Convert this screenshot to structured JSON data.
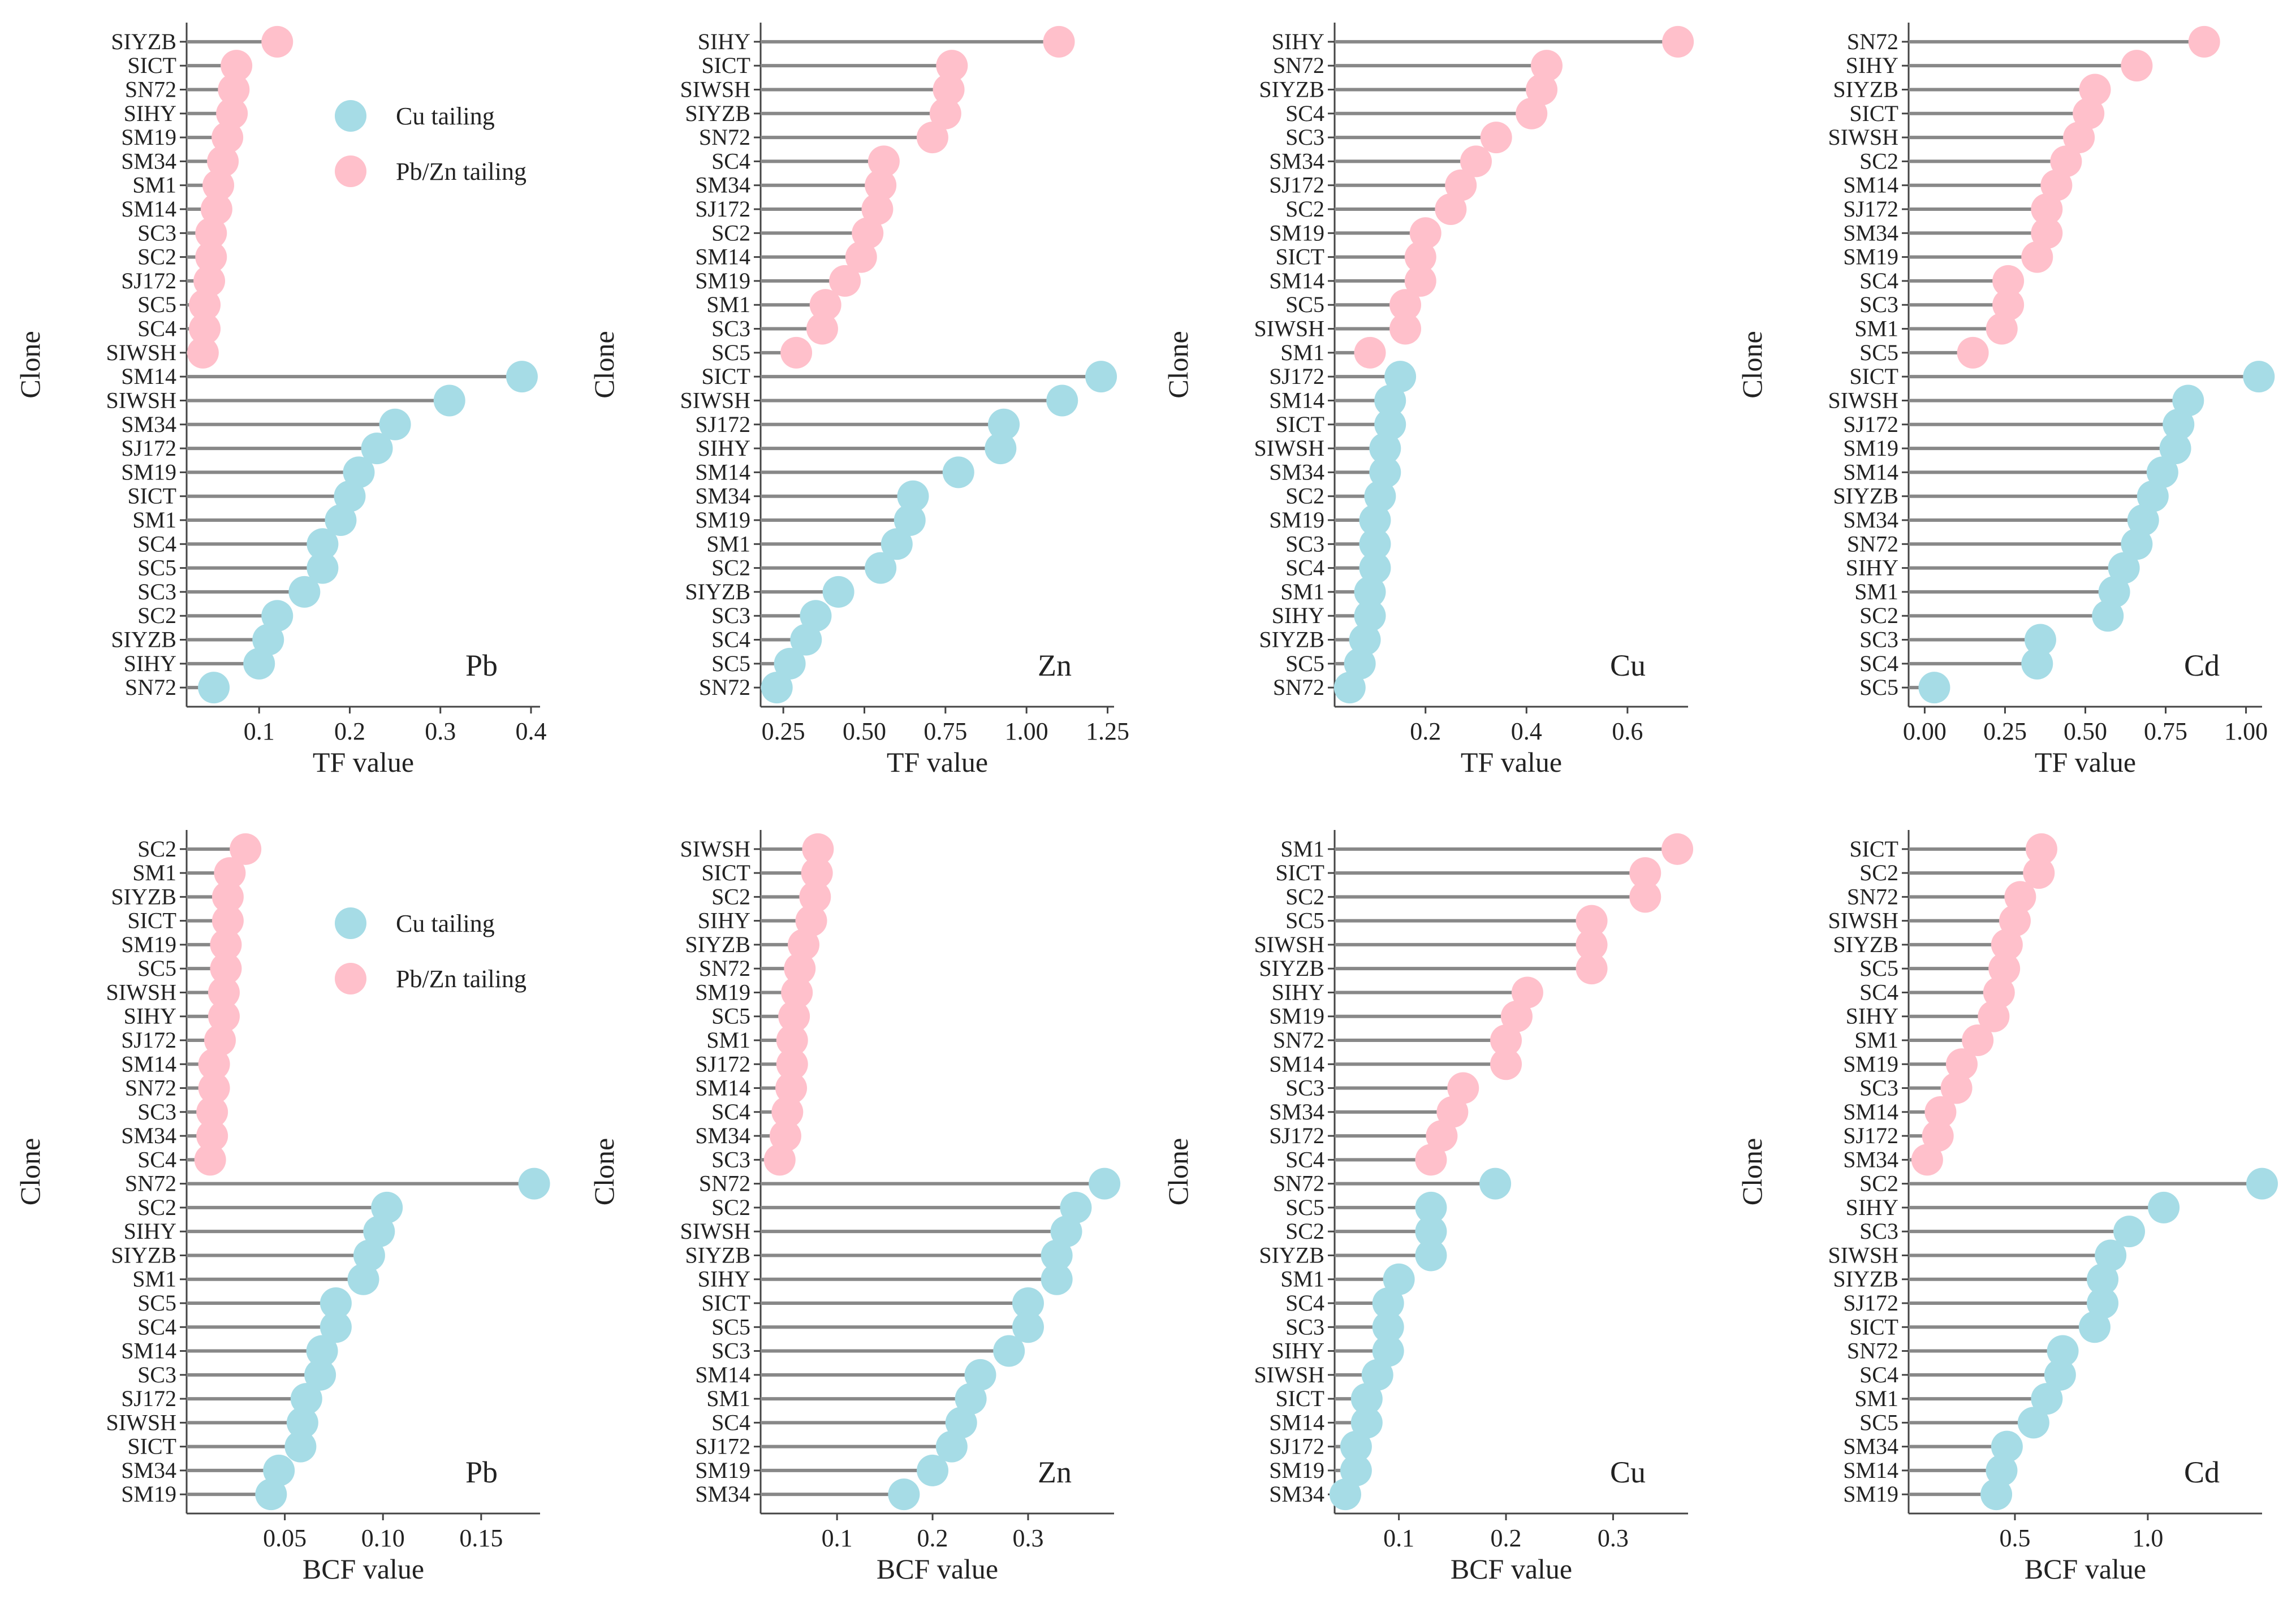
{
  "legend": [
    {
      "name": "Cu tailing",
      "color": "#a6dce6"
    },
    {
      "name": "Pb/Zn tailing",
      "color": "#ffc0cb"
    }
  ],
  "colors": {
    "stem": "#888888",
    "axis": "#444444"
  },
  "chart_data": [
    {
      "type": "lollipop",
      "metal": "Pb",
      "xlabel": "TF value",
      "ylabel": "Clone",
      "xlim": [
        0.02,
        0.41
      ],
      "xticks": [
        0.1,
        0.2,
        0.3,
        0.4
      ],
      "xtick_labels": [
        "0.1",
        "0.2",
        "0.3",
        "0.4"
      ],
      "show_legend": true,
      "series": [
        {
          "name": "Pb/Zn tailing",
          "clones": [
            "SIYZB",
            "SICT",
            "SN72",
            "SIHY",
            "SM19",
            "SM34",
            "SM1",
            "SM14",
            "SC3",
            "SC2",
            "SJ172",
            "SC5",
            "SC4",
            "SIWSH"
          ],
          "values": [
            0.12,
            0.075,
            0.072,
            0.07,
            0.065,
            0.06,
            0.055,
            0.053,
            0.047,
            0.047,
            0.045,
            0.04,
            0.04,
            0.038
          ]
        },
        {
          "name": "Cu tailing",
          "clones": [
            "SM14",
            "SIWSH",
            "SM34",
            "SJ172",
            "SM19",
            "SICT",
            "SM1",
            "SC4",
            "SC5",
            "SC3",
            "SC2",
            "SIYZB",
            "SIHY",
            "SN72"
          ],
          "values": [
            0.39,
            0.31,
            0.25,
            0.23,
            0.21,
            0.2,
            0.19,
            0.17,
            0.17,
            0.15,
            0.12,
            0.11,
            0.1,
            0.05
          ]
        }
      ]
    },
    {
      "type": "lollipop",
      "metal": "Zn",
      "xlabel": "TF value",
      "ylabel": "Clone",
      "xlim": [
        0.18,
        1.27
      ],
      "xticks": [
        0.25,
        0.5,
        0.75,
        1.0,
        1.25
      ],
      "xtick_labels": [
        "0.25",
        "0.50",
        "0.75",
        "1.00",
        "1.25"
      ],
      "show_legend": false,
      "series": [
        {
          "name": "Pb/Zn tailing",
          "clones": [
            "SIHY",
            "SICT",
            "SIWSH",
            "SIYZB",
            "SN72",
            "SC4",
            "SM34",
            "SJ172",
            "SC2",
            "SM14",
            "SM19",
            "SM1",
            "SC3",
            "SC5"
          ],
          "values": [
            1.1,
            0.77,
            0.76,
            0.75,
            0.71,
            0.56,
            0.55,
            0.54,
            0.51,
            0.49,
            0.44,
            0.38,
            0.37,
            0.29
          ]
        },
        {
          "name": "Cu tailing",
          "clones": [
            "SICT",
            "SIWSH",
            "SJ172",
            "SIHY",
            "SM14",
            "SM34",
            "SM19",
            "SM1",
            "SC2",
            "SIYZB",
            "SC3",
            "SC4",
            "SC5",
            "SN72"
          ],
          "values": [
            1.23,
            1.11,
            0.93,
            0.92,
            0.79,
            0.65,
            0.64,
            0.6,
            0.55,
            0.42,
            0.35,
            0.32,
            0.27,
            0.23
          ]
        }
      ]
    },
    {
      "type": "lollipop",
      "metal": "Cu",
      "xlabel": "TF value",
      "ylabel": "Clone",
      "xlim": [
        0.02,
        0.72
      ],
      "xticks": [
        0.2,
        0.4,
        0.6
      ],
      "xtick_labels": [
        "0.2",
        "0.4",
        "0.6"
      ],
      "show_legend": false,
      "series": [
        {
          "name": "Pb/Zn tailing",
          "clones": [
            "SIHY",
            "SN72",
            "SIYZB",
            "SC4",
            "SC3",
            "SM34",
            "SJ172",
            "SC2",
            "SM19",
            "SICT",
            "SM14",
            "SC5",
            "SIWSH",
            "SM1"
          ],
          "values": [
            0.7,
            0.44,
            0.43,
            0.41,
            0.34,
            0.3,
            0.27,
            0.25,
            0.2,
            0.19,
            0.19,
            0.16,
            0.16,
            0.09
          ]
        },
        {
          "name": "Cu tailing",
          "clones": [
            "SJ172",
            "SM14",
            "SICT",
            "SIWSH",
            "SM34",
            "SC2",
            "SM19",
            "SC3",
            "SC4",
            "SM1",
            "SIHY",
            "SIYZB",
            "SC5",
            "SN72"
          ],
          "values": [
            0.15,
            0.13,
            0.13,
            0.12,
            0.12,
            0.11,
            0.1,
            0.1,
            0.1,
            0.09,
            0.09,
            0.08,
            0.07,
            0.05
          ]
        }
      ]
    },
    {
      "type": "lollipop",
      "metal": "Cd",
      "xlabel": "TF value",
      "ylabel": "Clone",
      "xlim": [
        -0.05,
        1.05
      ],
      "xticks": [
        0.0,
        0.25,
        0.5,
        0.75,
        1.0
      ],
      "xtick_labels": [
        "0.00",
        "0.25",
        "0.50",
        "0.75",
        "1.00"
      ],
      "show_legend": false,
      "series": [
        {
          "name": "Pb/Zn tailing",
          "clones": [
            "SN72",
            "SIHY",
            "SIYZB",
            "SICT",
            "SIWSH",
            "SC2",
            "SM14",
            "SJ172",
            "SM34",
            "SM19",
            "SC4",
            "SC3",
            "SM1",
            "SC5"
          ],
          "values": [
            0.87,
            0.66,
            0.53,
            0.51,
            0.48,
            0.44,
            0.41,
            0.38,
            0.38,
            0.35,
            0.26,
            0.26,
            0.24,
            0.15
          ]
        },
        {
          "name": "Cu tailing",
          "clones": [
            "SICT",
            "SIWSH",
            "SJ172",
            "SM19",
            "SM14",
            "SIYZB",
            "SM34",
            "SN72",
            "SIHY",
            "SM1",
            "SC2",
            "SC3",
            "SC4",
            "SC5"
          ],
          "values": [
            1.04,
            0.82,
            0.79,
            0.78,
            0.74,
            0.71,
            0.68,
            0.66,
            0.62,
            0.59,
            0.57,
            0.36,
            0.35,
            0.03
          ]
        }
      ]
    },
    {
      "type": "lollipop",
      "metal": "Pb",
      "xlabel": "BCF value",
      "ylabel": "Clone",
      "xlim": [
        0.0,
        0.18
      ],
      "xticks": [
        0.05,
        0.1,
        0.15
      ],
      "xtick_labels": [
        "0.05",
        "0.10",
        "0.15"
      ],
      "show_legend": true,
      "series": [
        {
          "name": "Pb/Zn tailing",
          "clones": [
            "SC2",
            "SM1",
            "SIYZB",
            "SICT",
            "SM19",
            "SC5",
            "SIWSH",
            "SIHY",
            "SJ172",
            "SM14",
            "SN72",
            "SC3",
            "SM34",
            "SC4"
          ],
          "values": [
            0.03,
            0.022,
            0.021,
            0.021,
            0.02,
            0.02,
            0.019,
            0.019,
            0.017,
            0.014,
            0.014,
            0.013,
            0.013,
            0.012
          ]
        },
        {
          "name": "Cu tailing",
          "clones": [
            "SN72",
            "SC2",
            "SIHY",
            "SIYZB",
            "SM1",
            "SC5",
            "SC4",
            "SM14",
            "SC3",
            "SJ172",
            "SIWSH",
            "SICT",
            "SM34",
            "SM19"
          ],
          "values": [
            0.177,
            0.102,
            0.098,
            0.093,
            0.09,
            0.076,
            0.076,
            0.069,
            0.068,
            0.061,
            0.059,
            0.058,
            0.047,
            0.043
          ]
        }
      ]
    },
    {
      "type": "lollipop",
      "metal": "Zn",
      "xlabel": "BCF value",
      "ylabel": "Clone",
      "xlim": [
        0.02,
        0.39
      ],
      "xticks": [
        0.1,
        0.2,
        0.3
      ],
      "xtick_labels": [
        "0.1",
        "0.2",
        "0.3"
      ],
      "show_legend": false,
      "series": [
        {
          "name": "Pb/Zn tailing",
          "clones": [
            "SIWSH",
            "SICT",
            "SC2",
            "SIHY",
            "SIYZB",
            "SN72",
            "SM19",
            "SC5",
            "SM1",
            "SJ172",
            "SM14",
            "SC4",
            "SM34",
            "SC3"
          ],
          "values": [
            0.08,
            0.079,
            0.077,
            0.073,
            0.065,
            0.061,
            0.058,
            0.055,
            0.053,
            0.053,
            0.052,
            0.048,
            0.046,
            0.04
          ]
        },
        {
          "name": "Cu tailing",
          "clones": [
            "SN72",
            "SC2",
            "SIWSH",
            "SIYZB",
            "SIHY",
            "SICT",
            "SC5",
            "SC3",
            "SM14",
            "SM1",
            "SC4",
            "SJ172",
            "SM19",
            "SM34"
          ],
          "values": [
            0.38,
            0.35,
            0.34,
            0.33,
            0.33,
            0.3,
            0.3,
            0.28,
            0.25,
            0.24,
            0.23,
            0.22,
            0.2,
            0.17
          ]
        }
      ]
    },
    {
      "type": "lollipop",
      "metal": "Cu",
      "xlabel": "BCF value",
      "ylabel": "Clone",
      "xlim": [
        0.04,
        0.37
      ],
      "xticks": [
        0.1,
        0.2,
        0.3
      ],
      "xtick_labels": [
        "0.1",
        "0.2",
        "0.3"
      ],
      "show_legend": false,
      "series": [
        {
          "name": "Pb/Zn tailing",
          "clones": [
            "SM1",
            "SICT",
            "SC2",
            "SC5",
            "SIWSH",
            "SIYZB",
            "SIHY",
            "SM19",
            "SN72",
            "SM14",
            "SC3",
            "SM34",
            "SJ172",
            "SC4"
          ],
          "values": [
            0.36,
            0.33,
            0.33,
            0.28,
            0.28,
            0.28,
            0.22,
            0.21,
            0.2,
            0.2,
            0.16,
            0.15,
            0.14,
            0.13
          ]
        },
        {
          "name": "Cu tailing",
          "clones": [
            "SN72",
            "SC5",
            "SC2",
            "SIYZB",
            "SM1",
            "SC4",
            "SC3",
            "SIHY",
            "SIWSH",
            "SICT",
            "SM14",
            "SJ172",
            "SM19",
            "SM34"
          ],
          "values": [
            0.19,
            0.13,
            0.13,
            0.13,
            0.1,
            0.09,
            0.09,
            0.09,
            0.08,
            0.07,
            0.07,
            0.06,
            0.06,
            0.05
          ]
        }
      ]
    },
    {
      "type": "lollipop",
      "metal": "Cd",
      "xlabel": "BCF value",
      "ylabel": "Clone",
      "xlim": [
        0.1,
        1.43
      ],
      "xticks": [
        0.5,
        1.0
      ],
      "xtick_labels": [
        "0.5",
        "1.0"
      ],
      "show_legend": false,
      "series": [
        {
          "name": "Pb/Zn tailing",
          "clones": [
            "SICT",
            "SC2",
            "SN72",
            "SIWSH",
            "SIYZB",
            "SC5",
            "SC4",
            "SIHY",
            "SM1",
            "SM19",
            "SC3",
            "SM14",
            "SJ172",
            "SM34"
          ],
          "values": [
            0.6,
            0.59,
            0.52,
            0.5,
            0.47,
            0.46,
            0.44,
            0.42,
            0.36,
            0.3,
            0.28,
            0.22,
            0.21,
            0.17
          ]
        },
        {
          "name": "Cu tailing",
          "clones": [
            "SC2",
            "SIHY",
            "SC3",
            "SIWSH",
            "SIYZB",
            "SJ172",
            "SICT",
            "SN72",
            "SC4",
            "SM1",
            "SC5",
            "SM34",
            "SM14",
            "SM19"
          ],
          "values": [
            1.43,
            1.06,
            0.93,
            0.86,
            0.83,
            0.83,
            0.8,
            0.68,
            0.67,
            0.62,
            0.57,
            0.47,
            0.45,
            0.43
          ]
        }
      ]
    }
  ]
}
